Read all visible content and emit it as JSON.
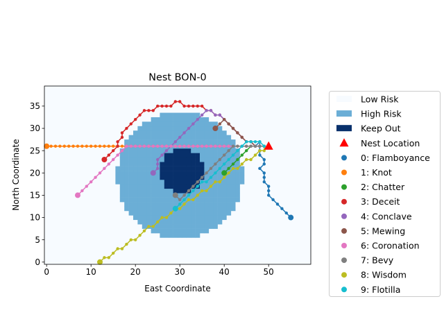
{
  "chart_data": {
    "type": "scatter",
    "title": "Nest BON-0",
    "xlabel": "East Coordinate",
    "ylabel": "North Coordinate",
    "xlim": [
      -0.5,
      59.5
    ],
    "ylim": [
      -0.5,
      39.5
    ],
    "xticks": [
      0,
      10,
      20,
      30,
      40,
      50
    ],
    "yticks": [
      0,
      5,
      10,
      15,
      20,
      25,
      30,
      35
    ],
    "grid": false,
    "legend_position": "outside right",
    "colors": {
      "low_risk": "#f7fbff",
      "high_risk": "#6baed6",
      "keep_out": "#08306b",
      "nest": "#ff0000"
    },
    "zones": {
      "high_risk_center": [
        30,
        19.5
      ],
      "high_risk_radius": 14.2,
      "keep_out_center": [
        30.5,
        20.5
      ],
      "keep_out_radius": 5
    },
    "nest": {
      "x": 50,
      "y": 26
    },
    "legend": {
      "low_risk": "Low Risk",
      "high_risk": "High Risk",
      "keep_out": "Keep Out",
      "nest": "Nest Location"
    },
    "series": [
      {
        "name": "0: Flamboyance",
        "color": "#1f77b4",
        "points": [
          [
            55,
            10
          ],
          [
            54,
            11
          ],
          [
            53,
            12
          ],
          [
            52,
            13
          ],
          [
            51,
            14
          ],
          [
            50,
            15
          ],
          [
            50,
            16
          ],
          [
            50,
            17
          ],
          [
            49,
            18
          ],
          [
            49,
            19
          ],
          [
            49,
            20
          ],
          [
            48,
            21
          ],
          [
            49,
            22
          ],
          [
            49,
            23
          ],
          [
            48,
            24
          ],
          [
            48,
            25
          ],
          [
            48,
            26
          ],
          [
            48,
            27
          ],
          [
            47,
            26
          ]
        ]
      },
      {
        "name": "1: Knot",
        "color": "#ff7f0e",
        "points": [
          [
            0,
            26
          ],
          [
            1,
            26
          ],
          [
            2,
            26
          ],
          [
            3,
            26
          ],
          [
            4,
            26
          ],
          [
            5,
            26
          ],
          [
            6,
            26
          ],
          [
            7,
            26
          ],
          [
            8,
            26
          ],
          [
            9,
            26
          ],
          [
            10,
            26
          ],
          [
            11,
            26
          ],
          [
            12,
            26
          ],
          [
            13,
            26
          ],
          [
            14,
            26
          ],
          [
            15,
            26
          ],
          [
            16,
            26
          ],
          [
            17,
            26
          ],
          [
            18,
            26
          ],
          [
            19,
            26
          ],
          [
            20,
            26
          ],
          [
            21,
            26
          ],
          [
            22,
            26
          ],
          [
            23,
            26
          ],
          [
            24,
            26
          ],
          [
            25,
            26
          ],
          [
            26,
            26
          ],
          [
            27,
            26
          ],
          [
            28,
            26
          ],
          [
            29,
            26
          ],
          [
            30,
            26
          ],
          [
            31,
            26
          ],
          [
            32,
            26
          ],
          [
            33,
            26
          ],
          [
            34,
            26
          ],
          [
            35,
            26
          ],
          [
            36,
            26
          ],
          [
            37,
            26
          ],
          [
            38,
            26
          ],
          [
            39,
            26
          ],
          [
            40,
            26
          ],
          [
            41,
            26
          ],
          [
            42,
            26
          ],
          [
            43,
            26
          ],
          [
            44,
            26
          ],
          [
            45,
            26
          ],
          [
            46,
            26
          ],
          [
            47,
            26
          ],
          [
            48,
            26
          ],
          [
            49,
            26
          ]
        ]
      },
      {
        "name": "2: Chatter",
        "color": "#2ca02c",
        "points": [
          [
            40,
            20
          ],
          [
            41,
            21
          ],
          [
            42,
            22
          ],
          [
            43,
            23
          ],
          [
            44,
            24
          ],
          [
            45,
            25
          ],
          [
            46,
            26
          ],
          [
            47,
            26
          ],
          [
            48,
            26
          ],
          [
            49,
            26
          ]
        ]
      },
      {
        "name": "3: Deceit",
        "color": "#d62728",
        "points": [
          [
            13,
            23
          ],
          [
            14,
            24
          ],
          [
            15,
            25
          ],
          [
            16,
            26
          ],
          [
            16,
            27
          ],
          [
            17,
            28
          ],
          [
            17,
            29
          ],
          [
            18,
            30
          ],
          [
            19,
            31
          ],
          [
            20,
            32
          ],
          [
            21,
            33
          ],
          [
            22,
            34
          ],
          [
            23,
            34
          ],
          [
            24,
            34
          ],
          [
            25,
            35
          ],
          [
            26,
            35
          ],
          [
            27,
            35
          ],
          [
            28,
            35
          ],
          [
            29,
            36
          ],
          [
            30,
            36
          ],
          [
            31,
            35
          ],
          [
            32,
            35
          ],
          [
            33,
            35
          ],
          [
            34,
            35
          ],
          [
            35,
            35
          ],
          [
            36,
            34
          ],
          [
            37,
            34
          ],
          [
            38,
            33
          ],
          [
            39,
            33
          ],
          [
            40,
            32
          ],
          [
            41,
            31
          ],
          [
            42,
            30
          ],
          [
            43,
            29
          ],
          [
            44,
            28
          ],
          [
            45,
            27
          ],
          [
            46,
            27
          ],
          [
            47,
            26
          ],
          [
            48,
            26
          ],
          [
            49,
            26
          ]
        ]
      },
      {
        "name": "4: Conclave",
        "color": "#9467bd",
        "points": [
          [
            24,
            20
          ],
          [
            25,
            21
          ],
          [
            25,
            22
          ],
          [
            25,
            23
          ],
          [
            26,
            24
          ],
          [
            27,
            25
          ],
          [
            28,
            26
          ],
          [
            29,
            27
          ],
          [
            30,
            28
          ],
          [
            31,
            29
          ],
          [
            32,
            30
          ],
          [
            33,
            31
          ],
          [
            34,
            32
          ],
          [
            35,
            33
          ],
          [
            36,
            34
          ],
          [
            37,
            34
          ],
          [
            38,
            33
          ],
          [
            39,
            33
          ],
          [
            40,
            32
          ],
          [
            41,
            31
          ],
          [
            42,
            30
          ],
          [
            43,
            29
          ],
          [
            44,
            28
          ],
          [
            45,
            27
          ],
          [
            46,
            27
          ],
          [
            47,
            26
          ],
          [
            48,
            26
          ],
          [
            49,
            26
          ]
        ]
      },
      {
        "name": "5: Mewing",
        "color": "#8c564b",
        "points": [
          [
            38,
            30
          ],
          [
            39,
            31
          ],
          [
            40,
            32
          ],
          [
            41,
            31
          ],
          [
            42,
            30
          ],
          [
            43,
            29
          ],
          [
            44,
            28
          ],
          [
            45,
            27
          ],
          [
            46,
            27
          ],
          [
            47,
            26
          ],
          [
            48,
            26
          ],
          [
            49,
            26
          ]
        ]
      },
      {
        "name": "6: Coronation",
        "color": "#e377c2",
        "points": [
          [
            7,
            15
          ],
          [
            8,
            16
          ],
          [
            9,
            17
          ],
          [
            10,
            18
          ],
          [
            11,
            19
          ],
          [
            12,
            20
          ],
          [
            13,
            21
          ],
          [
            14,
            22
          ],
          [
            15,
            23
          ],
          [
            16,
            24
          ],
          [
            17,
            25
          ],
          [
            18,
            26
          ],
          [
            19,
            26
          ],
          [
            20,
            26
          ],
          [
            21,
            26
          ],
          [
            22,
            26
          ],
          [
            23,
            26
          ],
          [
            24,
            26
          ],
          [
            25,
            26
          ],
          [
            26,
            26
          ],
          [
            27,
            26
          ],
          [
            28,
            26
          ],
          [
            29,
            26
          ],
          [
            30,
            26
          ],
          [
            31,
            26
          ],
          [
            32,
            26
          ],
          [
            33,
            26
          ],
          [
            34,
            26
          ],
          [
            35,
            26
          ],
          [
            36,
            26
          ],
          [
            37,
            26
          ],
          [
            38,
            26
          ],
          [
            39,
            26
          ],
          [
            40,
            26
          ],
          [
            41,
            26
          ],
          [
            42,
            26
          ],
          [
            43,
            26
          ],
          [
            44,
            26
          ],
          [
            45,
            26
          ],
          [
            46,
            26
          ],
          [
            47,
            26
          ],
          [
            48,
            26
          ],
          [
            49,
            26
          ]
        ]
      },
      {
        "name": "7: Bevy",
        "color": "#7f7f7f",
        "points": [
          [
            29,
            15
          ],
          [
            30,
            14
          ],
          [
            31,
            15
          ],
          [
            32,
            16
          ],
          [
            33,
            17
          ],
          [
            34,
            18
          ],
          [
            35,
            19
          ],
          [
            36,
            20
          ],
          [
            37,
            21
          ],
          [
            38,
            22
          ],
          [
            39,
            23
          ],
          [
            40,
            24
          ],
          [
            41,
            25
          ],
          [
            42,
            26
          ],
          [
            43,
            26
          ],
          [
            44,
            26
          ],
          [
            45,
            26
          ],
          [
            46,
            26
          ],
          [
            47,
            26
          ],
          [
            48,
            26
          ],
          [
            49,
            26
          ]
        ]
      },
      {
        "name": "8: Wisdom",
        "color": "#bcbd22",
        "points": [
          [
            12,
            0
          ],
          [
            13,
            1
          ],
          [
            14,
            1
          ],
          [
            15,
            2
          ],
          [
            16,
            3
          ],
          [
            17,
            3
          ],
          [
            18,
            4
          ],
          [
            19,
            5
          ],
          [
            20,
            5
          ],
          [
            21,
            6
          ],
          [
            22,
            7
          ],
          [
            23,
            8
          ],
          [
            24,
            8
          ],
          [
            25,
            9
          ],
          [
            26,
            10
          ],
          [
            27,
            10
          ],
          [
            28,
            11
          ],
          [
            29,
            12
          ],
          [
            30,
            12
          ],
          [
            31,
            13
          ],
          [
            32,
            14
          ],
          [
            33,
            14
          ],
          [
            34,
            15
          ],
          [
            35,
            16
          ],
          [
            36,
            16
          ],
          [
            37,
            17
          ],
          [
            38,
            18
          ],
          [
            39,
            18
          ],
          [
            40,
            19
          ],
          [
            41,
            20
          ],
          [
            42,
            21
          ],
          [
            43,
            21
          ],
          [
            44,
            22
          ],
          [
            45,
            23
          ],
          [
            46,
            23
          ],
          [
            47,
            24
          ],
          [
            48,
            25
          ],
          [
            49,
            25
          ],
          [
            49,
            26
          ]
        ]
      },
      {
        "name": "9: Flotilla",
        "color": "#17becf",
        "points": [
          [
            29,
            12
          ],
          [
            30,
            13
          ],
          [
            31,
            14
          ],
          [
            32,
            15
          ],
          [
            33,
            16
          ],
          [
            34,
            17
          ],
          [
            35,
            18
          ],
          [
            36,
            18
          ],
          [
            37,
            19
          ],
          [
            38,
            20
          ],
          [
            39,
            21
          ],
          [
            40,
            22
          ],
          [
            41,
            23
          ],
          [
            42,
            24
          ],
          [
            43,
            25
          ],
          [
            44,
            26
          ],
          [
            45,
            27
          ],
          [
            46,
            27
          ],
          [
            47,
            27
          ],
          [
            48,
            27
          ],
          [
            49,
            26
          ]
        ]
      }
    ]
  }
}
